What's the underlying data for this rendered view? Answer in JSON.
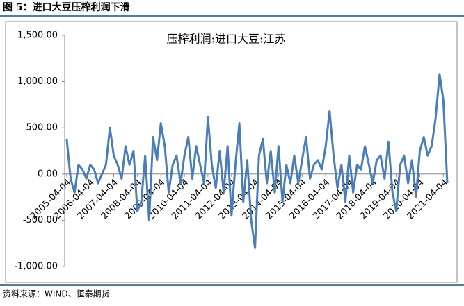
{
  "header": {
    "title": "图 5：进口大豆压榨利润下滑"
  },
  "footer": {
    "source": "资料来源：WIND、恒泰期货"
  },
  "chart_data": {
    "type": "line",
    "title": "压榨利润:进口大豆:江苏",
    "color": "#4a7ebb",
    "x": [
      "2005-04-04",
      "2005-06-04",
      "2005-08-04",
      "2005-10-04",
      "2005-12-04",
      "2006-02-04",
      "2006-04-04",
      "2006-06-04",
      "2006-08-04",
      "2006-10-04",
      "2006-12-04",
      "2007-02-04",
      "2007-04-04",
      "2007-06-04",
      "2007-08-04",
      "2007-10-04",
      "2007-12-04",
      "2008-02-04",
      "2008-04-04",
      "2008-06-04",
      "2008-08-04",
      "2008-10-04",
      "2008-12-04",
      "2009-02-04",
      "2009-04-04",
      "2009-06-04",
      "2009-08-04",
      "2009-10-04",
      "2009-12-04",
      "2010-02-04",
      "2010-04-04",
      "2010-06-04",
      "2010-08-04",
      "2010-10-04",
      "2010-12-04",
      "2011-02-04",
      "2011-04-04",
      "2011-06-04",
      "2011-08-04",
      "2011-10-04",
      "2011-12-04",
      "2012-02-04",
      "2012-04-04",
      "2012-06-04",
      "2012-08-04",
      "2012-10-04",
      "2012-12-04",
      "2013-02-04",
      "2013-04-04",
      "2013-06-04",
      "2013-08-04",
      "2013-10-04",
      "2013-12-04",
      "2014-02-04",
      "2014-04-04",
      "2014-06-04",
      "2014-08-04",
      "2014-10-04",
      "2014-12-04",
      "2015-02-04",
      "2015-04-04",
      "2015-06-04",
      "2015-08-04",
      "2015-10-04",
      "2015-12-04",
      "2016-02-04",
      "2016-04-04",
      "2016-06-04",
      "2016-08-04",
      "2016-10-04",
      "2016-12-04",
      "2017-02-04",
      "2017-04-04",
      "2017-06-04",
      "2017-08-04",
      "2017-10-04",
      "2017-12-04",
      "2018-02-04",
      "2018-04-04",
      "2018-06-04",
      "2018-08-04",
      "2018-10-04",
      "2018-12-04",
      "2019-02-04",
      "2019-04-04",
      "2019-06-04",
      "2019-08-04",
      "2019-10-04",
      "2019-12-04",
      "2020-02-04",
      "2020-04-04",
      "2020-06-04",
      "2020-08-04",
      "2020-10-04",
      "2020-12-04",
      "2021-02-04",
      "2021-04-04",
      "2021-06-04"
    ],
    "values": [
      380,
      -50,
      -200,
      100,
      50,
      -50,
      100,
      50,
      -100,
      0,
      100,
      500,
      200,
      100,
      -50,
      300,
      100,
      250,
      -400,
      -300,
      200,
      -500,
      400,
      150,
      550,
      300,
      -200,
      100,
      200,
      -100,
      200,
      400,
      -50,
      300,
      100,
      -100,
      620,
      100,
      -150,
      250,
      -200,
      300,
      -450,
      100,
      550,
      -300,
      150,
      -500,
      -800,
      200,
      380,
      -100,
      250,
      -200,
      300,
      -300,
      100,
      -100,
      200,
      -100,
      150,
      400,
      -50,
      100,
      150,
      50,
      300,
      680,
      200,
      -150,
      100,
      -300,
      200,
      -200,
      100,
      50,
      300,
      100,
      -100,
      150,
      200,
      -50,
      350,
      -200,
      -400,
      100,
      200,
      -100,
      150,
      -250,
      250,
      400,
      200,
      300,
      600,
      1080,
      800,
      -100
    ],
    "xlim": [
      "2005-03-04",
      "2021-06-04"
    ],
    "xticks": [
      "2005-04-04",
      "2006-04-04",
      "2007-04-04",
      "2008-04-04",
      "2009-04-04",
      "2010-04-04",
      "2011-04-04",
      "2012-04-04",
      "2013-04-04",
      "2014-04-04",
      "2015-04-04",
      "2016-04-04",
      "2017-04-04",
      "2018-04-04",
      "2019-04-04",
      "2020-04-04",
      "2021-04-04"
    ],
    "ylim": [
      -1000,
      1500
    ],
    "yticks": [
      {
        "value": -1000,
        "label": "-1,000.00"
      },
      {
        "value": -500,
        "label": "-500.00"
      },
      {
        "value": 0,
        "label": "0.00"
      },
      {
        "value": 500,
        "label": "500.00"
      },
      {
        "value": 1000,
        "label": "1,000.00"
      },
      {
        "value": 1500,
        "label": "1,500.00"
      }
    ]
  }
}
